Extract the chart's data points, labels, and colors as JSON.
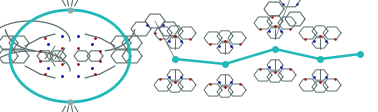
{
  "background_color": "#f0f0f0",
  "figsize": [
    3.78,
    1.13
  ],
  "dpi": 100,
  "image_b64": ""
}
